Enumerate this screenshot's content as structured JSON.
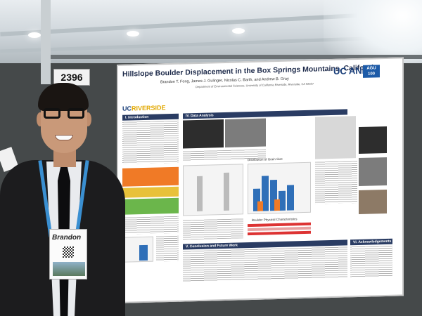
{
  "booth_number": "2396",
  "poster": {
    "title": "Hillslope Boulder Displacement in the Box Springs Mountains, California",
    "authors": "Brandon T. Fong, James J. Gulinger, Nicolas C. Barth, and Andrew B. Gray",
    "affiliation": "Department of Environmental Sciences, University of California Riverside, Riverside, CA 92507",
    "logo_left": "UC",
    "logo_left_accent": "RIVERSIDE",
    "logo_right": "UC ANR",
    "logo_agu": "AGU 100",
    "section_1": "I. Introduction",
    "section_4": "IV. Data Analysis",
    "section_5": "V. Conclusion and Future Work",
    "section_6": "VI. Acknowledgements",
    "chart_caption": "Distribution of Grain Size",
    "table_caption": "Boulder Physical Characteristics"
  },
  "badge": {
    "name": "Brandon"
  },
  "colors": {
    "poster_header": "#2a3c63",
    "lanyard": "#3a8fd1",
    "suit": "#1c1c1e"
  }
}
